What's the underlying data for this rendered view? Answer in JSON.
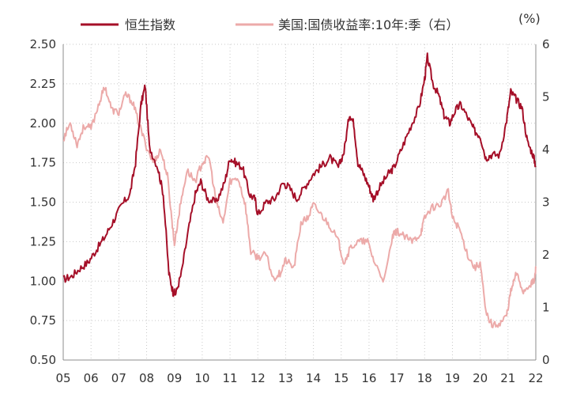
{
  "chart_data": {
    "type": "line",
    "title": "",
    "unit_label": "(%)",
    "x": {
      "label": "",
      "range": [
        2005,
        2022
      ],
      "ticks": [
        2005,
        2006,
        2007,
        2008,
        2009,
        2010,
        2011,
        2012,
        2013,
        2014,
        2015,
        2016,
        2017,
        2018,
        2019,
        2020,
        2021,
        2022
      ],
      "tick_labels": [
        "05",
        "06",
        "07",
        "08",
        "09",
        "10",
        "11",
        "12",
        "13",
        "14",
        "15",
        "16",
        "17",
        "18",
        "19",
        "20",
        "21",
        "22"
      ]
    },
    "y_left": {
      "label": "",
      "range": [
        0.5,
        2.5
      ],
      "ticks": [
        0.5,
        0.75,
        1.0,
        1.25,
        1.5,
        1.75,
        2.0,
        2.25,
        2.5
      ],
      "tick_labels": [
        "0.50",
        "0.75",
        "1.00",
        "1.25",
        "1.50",
        "1.75",
        "2.00",
        "2.25",
        "2.50"
      ]
    },
    "y_right": {
      "label": "(%)",
      "range": [
        0,
        6
      ],
      "ticks": [
        0,
        1,
        2,
        3,
        4,
        5,
        6
      ],
      "tick_labels": [
        "0",
        "1",
        "2",
        "3",
        "4",
        "5",
        "6"
      ]
    },
    "grid": true,
    "legend_position": "top",
    "series": [
      {
        "name": "恒生指数",
        "axis": "left",
        "color": "#a50f28",
        "x": [
          2005.0,
          2005.3,
          2005.6,
          2005.9,
          2006.2,
          2006.5,
          2006.8,
          2007.1,
          2007.4,
          2007.6,
          2007.8,
          2007.95,
          2008.1,
          2008.4,
          2008.6,
          2008.8,
          2008.95,
          2009.05,
          2009.25,
          2009.5,
          2009.75,
          2009.95,
          2010.2,
          2010.5,
          2010.8,
          2011.0,
          2011.2,
          2011.45,
          2011.7,
          2011.9,
          2012.0,
          2012.3,
          2012.6,
          2012.9,
          2013.1,
          2013.4,
          2013.7,
          2014.0,
          2014.3,
          2014.6,
          2014.9,
          2015.1,
          2015.3,
          2015.45,
          2015.6,
          2015.8,
          2016.0,
          2016.15,
          2016.4,
          2016.7,
          2016.9,
          2017.2,
          2017.5,
          2017.8,
          2018.0,
          2018.1,
          2018.3,
          2018.5,
          2018.7,
          2018.9,
          2019.1,
          2019.3,
          2019.6,
          2019.8,
          2020.0,
          2020.2,
          2020.4,
          2020.7,
          2020.95,
          2021.1,
          2021.3,
          2021.5,
          2021.7,
          2021.9,
          2022.0
        ],
        "values": [
          1.01,
          1.03,
          1.08,
          1.12,
          1.2,
          1.28,
          1.38,
          1.48,
          1.55,
          1.75,
          2.12,
          2.24,
          1.85,
          1.72,
          1.55,
          1.05,
          0.93,
          0.92,
          1.05,
          1.32,
          1.55,
          1.63,
          1.52,
          1.5,
          1.62,
          1.78,
          1.75,
          1.72,
          1.55,
          1.52,
          1.42,
          1.5,
          1.52,
          1.62,
          1.6,
          1.52,
          1.6,
          1.68,
          1.73,
          1.78,
          1.72,
          1.82,
          2.06,
          2.0,
          1.75,
          1.68,
          1.6,
          1.52,
          1.6,
          1.68,
          1.72,
          1.85,
          1.98,
          2.1,
          2.28,
          2.42,
          2.25,
          2.18,
          2.05,
          2.0,
          2.08,
          2.12,
          2.02,
          1.95,
          1.92,
          1.78,
          1.8,
          1.8,
          2.02,
          2.2,
          2.15,
          2.1,
          1.88,
          1.8,
          1.73
        ]
      },
      {
        "name": "美国:国债收益率:10年:季（右）",
        "axis": "right",
        "color": "#ecaaa9",
        "x": [
          2005.0,
          2005.25,
          2005.5,
          2005.75,
          2006.0,
          2006.3,
          2006.5,
          2006.75,
          2007.0,
          2007.25,
          2007.5,
          2007.75,
          2008.0,
          2008.25,
          2008.5,
          2008.75,
          2008.9,
          2009.0,
          2009.2,
          2009.45,
          2009.75,
          2010.0,
          2010.25,
          2010.5,
          2010.75,
          2011.0,
          2011.3,
          2011.55,
          2011.75,
          2012.0,
          2012.3,
          2012.55,
          2012.8,
          2013.0,
          2013.3,
          2013.55,
          2013.8,
          2014.0,
          2014.3,
          2014.6,
          2014.9,
          2015.1,
          2015.35,
          2015.65,
          2015.95,
          2016.2,
          2016.55,
          2016.85,
          2017.0,
          2017.25,
          2017.55,
          2017.85,
          2018.0,
          2018.25,
          2018.55,
          2018.85,
          2019.0,
          2019.25,
          2019.55,
          2019.8,
          2020.0,
          2020.2,
          2020.45,
          2020.75,
          2020.95,
          2021.1,
          2021.3,
          2021.55,
          2021.8,
          2021.95,
          2022.0
        ],
        "values": [
          4.2,
          4.5,
          4.1,
          4.45,
          4.4,
          4.9,
          5.2,
          4.75,
          4.7,
          5.05,
          4.9,
          4.45,
          4.05,
          3.75,
          4.0,
          3.5,
          2.7,
          2.2,
          2.9,
          3.6,
          3.4,
          3.75,
          3.85,
          3.0,
          2.6,
          3.4,
          3.45,
          2.95,
          2.05,
          1.95,
          2.0,
          1.55,
          1.65,
          1.9,
          1.75,
          2.6,
          2.7,
          2.95,
          2.75,
          2.55,
          2.25,
          1.85,
          2.15,
          2.25,
          2.25,
          1.85,
          1.5,
          2.35,
          2.45,
          2.35,
          2.25,
          2.4,
          2.7,
          2.9,
          2.95,
          3.2,
          2.7,
          2.5,
          2.0,
          1.75,
          1.85,
          0.9,
          0.65,
          0.72,
          0.85,
          1.3,
          1.65,
          1.3,
          1.45,
          1.5,
          1.75
        ]
      }
    ]
  }
}
